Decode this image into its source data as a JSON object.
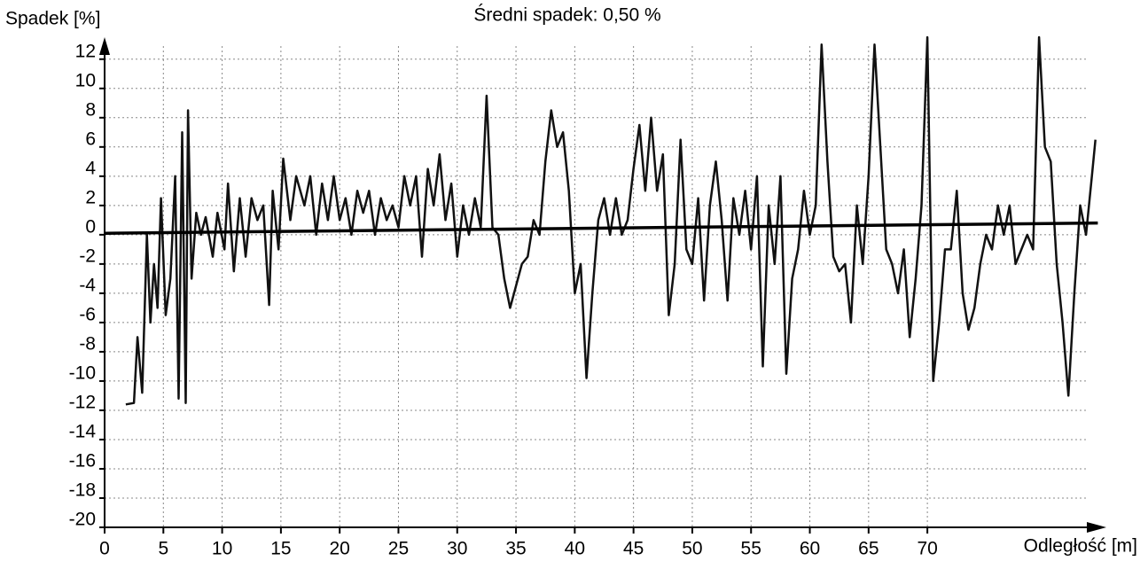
{
  "chart_data": {
    "type": "line",
    "title": "Średni spadek: 0,50 %",
    "y_label": "Spadek [%]",
    "x_label": "Odległość [m]",
    "xlim": [
      0,
      85
    ],
    "ylim": [
      -20,
      13.5
    ],
    "xticks": [
      0,
      5,
      10,
      15,
      20,
      25,
      30,
      35,
      40,
      45,
      50,
      55,
      60,
      65,
      70
    ],
    "yticks": [
      -20,
      -18,
      -16,
      -14,
      -12,
      -10,
      -8,
      -6,
      -4,
      -2,
      0,
      2,
      4,
      6,
      8,
      10,
      12
    ],
    "grid": true,
    "series": [
      {
        "color": "#111111",
        "x": [
          1.8,
          2.5,
          2.8,
          3.2,
          3.6,
          3.9,
          4.2,
          4.5,
          4.8,
          5.2,
          5.6,
          6.0,
          6.3,
          6.6,
          6.9,
          7.1,
          7.4,
          7.8,
          8.2,
          8.6,
          9.2,
          9.6,
          10.2,
          10.5,
          11,
          11.5,
          12,
          12.5,
          13,
          13.5,
          14,
          14.3,
          14.8,
          15.2,
          15.8,
          16.3,
          17,
          17.5,
          18,
          18.5,
          19,
          19.5,
          20,
          20.5,
          21,
          21.5,
          22,
          22.5,
          23,
          23.5,
          24,
          24.5,
          25,
          25.5,
          26,
          26.5,
          27,
          27.5,
          28,
          28.5,
          29,
          29.5,
          30,
          30.5,
          31,
          31.5,
          32,
          32.5,
          33,
          33.5,
          34,
          34.5,
          35,
          35.5,
          36,
          36.5,
          37,
          37.5,
          38,
          38.5,
          39,
          39.5,
          40,
          40.5,
          41,
          41.5,
          42,
          42.5,
          43,
          43.5,
          44,
          44.5,
          45,
          45.5,
          46,
          46.5,
          47,
          47.5,
          48,
          48.5,
          49,
          49.5,
          50,
          50.5,
          51,
          51.5,
          52,
          52.5,
          53,
          53.5,
          54,
          54.5,
          55,
          55.5,
          56,
          56.5,
          57,
          57.5,
          58,
          58.5,
          59,
          59.5,
          60,
          60.5,
          61,
          61.5,
          62,
          62.5,
          63,
          63.5,
          64,
          64.5,
          65,
          65.5,
          66,
          66.5,
          67,
          67.5,
          68,
          68.5,
          69,
          69.5,
          70,
          70.5,
          71,
          71.5,
          72,
          72.5,
          73,
          73.5,
          74,
          74.5,
          75,
          75.5,
          76,
          76.5,
          77,
          77.5,
          78,
          78.5,
          79,
          79.5,
          80,
          80.5,
          81,
          81.5,
          82,
          82.5,
          83,
          83.5,
          84,
          84.3
        ],
        "values": [
          -11.6,
          -11.5,
          -7,
          -10.8,
          0,
          -6,
          -2,
          -5,
          2.5,
          -5.5,
          -3,
          4,
          -11.2,
          7,
          -11.5,
          8.5,
          -3,
          1.5,
          0,
          1.2,
          -1.5,
          1.5,
          -1,
          3.5,
          -2.5,
          2.5,
          -1.5,
          2.5,
          1,
          2,
          -4.8,
          3,
          -1,
          5.2,
          1,
          4,
          2,
          4,
          0,
          3.5,
          1,
          4,
          1,
          2.5,
          0,
          3,
          1.5,
          3,
          0,
          2.5,
          1,
          2,
          0.5,
          4,
          2,
          4,
          -1.5,
          4.5,
          2,
          5.5,
          1,
          3.5,
          -1.5,
          2,
          0,
          2.5,
          0.5,
          9.5,
          0.5,
          0,
          -3,
          -5,
          -3.5,
          -2,
          -1.5,
          1,
          0,
          5,
          8.5,
          6,
          7,
          3,
          -4,
          -2,
          -9.8,
          -4,
          1,
          2.5,
          0,
          2.5,
          0,
          1,
          4.5,
          7.5,
          3,
          8,
          3,
          5.5,
          -5.5,
          -2,
          6.5,
          -1,
          -2,
          2.5,
          -4.5,
          2,
          5,
          1,
          -4.5,
          2.5,
          0,
          3,
          -1,
          4,
          -9,
          2,
          -2,
          4,
          -9.5,
          -3,
          -1,
          3,
          0,
          2,
          13,
          5,
          -1.5,
          -2.5,
          -2,
          -6,
          2,
          -2,
          4,
          13,
          6,
          -1,
          -2,
          -4,
          -1,
          -7,
          -3,
          2,
          13.5,
          -10,
          -6,
          -1,
          -1,
          3,
          -4,
          -6.5,
          -5,
          -2,
          0,
          -1,
          2,
          0,
          2,
          -2,
          -1,
          0,
          -1,
          13.5,
          6,
          5,
          -2,
          -6,
          -11,
          -4,
          2,
          0,
          4,
          6.5
        ]
      },
      {
        "color": "#000000",
        "x": [
          0,
          84.5
        ],
        "values": [
          0.1,
          0.8
        ]
      }
    ]
  }
}
